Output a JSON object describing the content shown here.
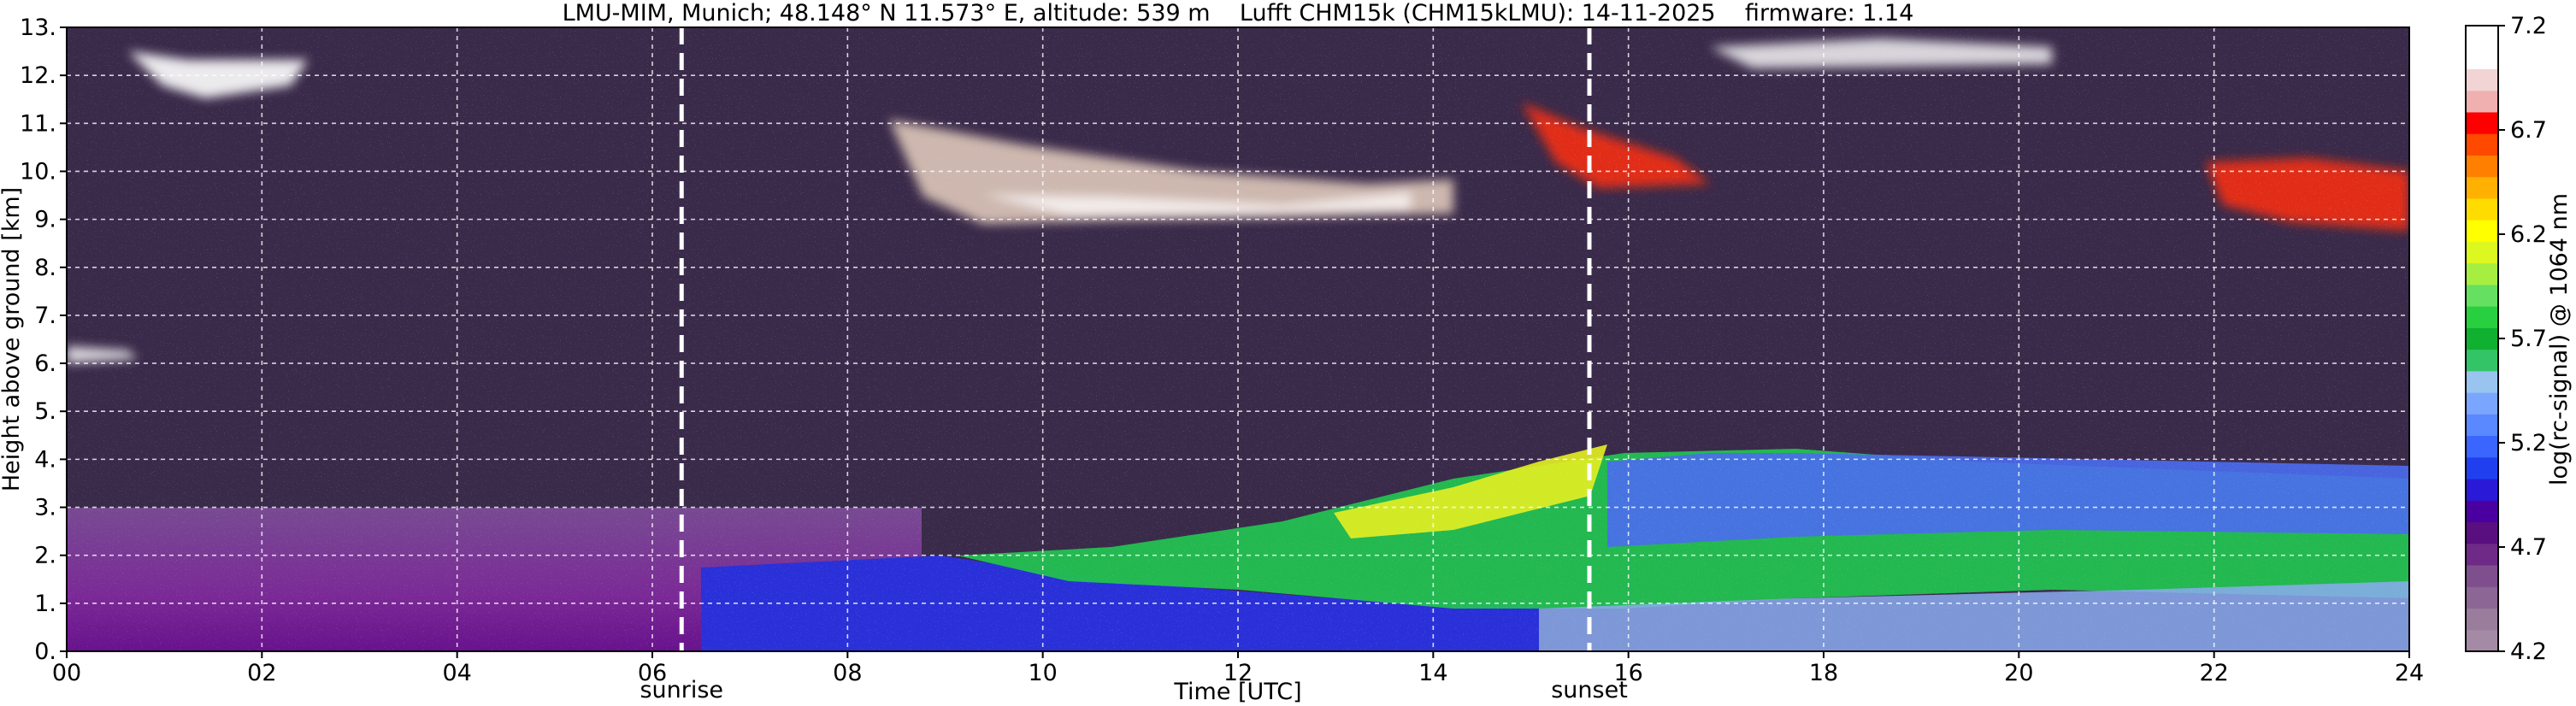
{
  "chart_data": {
    "type": "heatmap",
    "title": "LMU-MIM, Munich; 48.148° N 11.573° E, altitude: 539 m    Lufft CHM15k (CHM15kLMU): 14-11-2025    firmware: 1.14",
    "xlabel": "Time [UTC]",
    "ylabel": "Height above ground [km]",
    "colorbar_label": "log(rc-signal) @ 1064 nm",
    "xlim": [
      0,
      24
    ],
    "ylim": [
      0,
      13
    ],
    "x_ticks": [
      0,
      2,
      4,
      6,
      8,
      10,
      12,
      14,
      16,
      18,
      20,
      22,
      24
    ],
    "x_tick_labels": [
      "00",
      "02",
      "04",
      "06",
      "08",
      "10",
      "12",
      "14",
      "16",
      "18",
      "20",
      "22",
      "24"
    ],
    "y_ticks": [
      0,
      1,
      2,
      3,
      4,
      5,
      6,
      7,
      8,
      9,
      10,
      11,
      12,
      13
    ],
    "y_tick_labels": [
      "0.",
      "1.",
      "2.",
      "3.",
      "4.",
      "5.",
      "6.",
      "7.",
      "8.",
      "9.",
      "10.",
      "11.",
      "12.",
      "13."
    ],
    "grid": true,
    "colorbar_range": [
      4.2,
      7.2
    ],
    "colorbar_ticks": [
      4.2,
      4.7,
      5.2,
      5.7,
      6.2,
      6.7,
      7.2
    ],
    "colorbar_tick_labels": [
      "4.2",
      "4.7",
      "5.2",
      "5.7",
      "6.2",
      "6.7",
      "7.2"
    ],
    "colormap": [
      "#a48aa4",
      "#9a7c9c",
      "#8c6694",
      "#7e4f8c",
      "#6e2a86",
      "#5a0f80",
      "#4a00a0",
      "#2a1ad8",
      "#2040f0",
      "#3a66ff",
      "#5a88ff",
      "#7aa6ff",
      "#9ac4f0",
      "#34c468",
      "#10b030",
      "#28d040",
      "#66e060",
      "#a6ef40",
      "#dcf820",
      "#ffff00",
      "#ffdc00",
      "#ffb000",
      "#ff8000",
      "#ff4800",
      "#ff0000",
      "#f0b0b0",
      "#f2d4d4",
      "#ffffff",
      "#ffffff"
    ],
    "annotations": [
      {
        "label": "sunrise",
        "x": 6.3
      },
      {
        "label": "sunset",
        "x": 15.6
      }
    ]
  },
  "colors": {
    "background_noise": "#3a2a4a",
    "annotation_line": "#ffffff",
    "grid": "#ffffff"
  }
}
